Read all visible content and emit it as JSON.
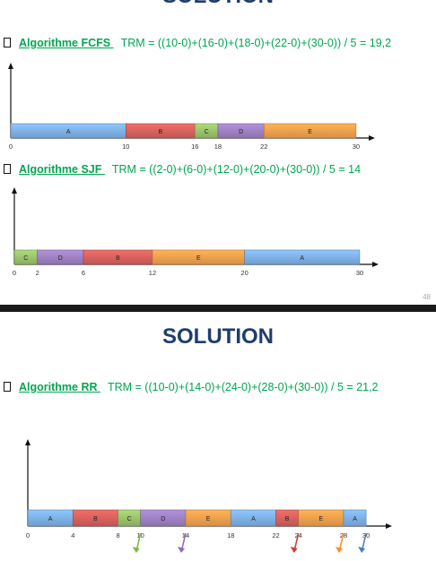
{
  "slide1": {
    "title": "SOLUTION",
    "fcfs": {
      "algo_label": "Algorithme FCFS ",
      "formula": "TRM = ((10-0)+(16-0)+(18-0)+(22-0)+(30-0)) / 5 = 19,2",
      "segments": [
        {
          "label": "A",
          "start": 0,
          "end": 10,
          "color": "#7fb2ea"
        },
        {
          "label": "B",
          "start": 10,
          "end": 16,
          "color": "#d9625e"
        },
        {
          "label": "C",
          "start": 16,
          "end": 18,
          "color": "#9cc46d"
        },
        {
          "label": "D",
          "start": 18,
          "end": 22,
          "color": "#9f82c4"
        },
        {
          "label": "E",
          "start": 22,
          "end": 30,
          "color": "#f7a14d"
        }
      ],
      "ticks": [
        "0",
        "10",
        "16",
        "18",
        "22",
        "30"
      ]
    },
    "sjf": {
      "algo_label": "Algorithme SJF ",
      "formula": "TRM = ((2-0)+(6-0)+(12-0)+(20-0)+(30-0)) / 5 = 14",
      "segments": [
        {
          "label": "C",
          "start": 0,
          "end": 2,
          "color": "#9cc46d"
        },
        {
          "label": "D",
          "start": 2,
          "end": 6,
          "color": "#9f82c4"
        },
        {
          "label": "B",
          "start": 6,
          "end": 12,
          "color": "#d9625e"
        },
        {
          "label": "E",
          "start": 12,
          "end": 20,
          "color": "#f7a14d"
        },
        {
          "label": "A",
          "start": 20,
          "end": 30,
          "color": "#7fb2ea"
        }
      ],
      "ticks": [
        "0",
        "2",
        "6",
        "12",
        "20",
        "30"
      ]
    },
    "page_number": "48"
  },
  "slide2": {
    "title": "SOLUTION",
    "rr": {
      "algo_label": "Algorithme RR ",
      "formula": "TRM = ((10-0)+(14-0)+(24-0)+(28-0)+(30-0)) / 5 = 21,2",
      "segments": [
        {
          "label": "A",
          "start": 0,
          "end": 4,
          "color": "#7fb2ea"
        },
        {
          "label": "B",
          "start": 4,
          "end": 8,
          "color": "#d9625e"
        },
        {
          "label": "C",
          "start": 8,
          "end": 10,
          "color": "#9cc46d"
        },
        {
          "label": "D",
          "start": 10,
          "end": 14,
          "color": "#9f82c4"
        },
        {
          "label": "E",
          "start": 14,
          "end": 18,
          "color": "#f7a14d"
        },
        {
          "label": "A",
          "start": 18,
          "end": 22,
          "color": "#7fb2ea"
        },
        {
          "label": "B",
          "start": 22,
          "end": 24,
          "color": "#d9625e"
        },
        {
          "label": "E",
          "start": 24,
          "end": 28,
          "color": "#f7a14d"
        },
        {
          "label": "A",
          "start": 28,
          "end": 30,
          "color": "#7fb2ea"
        }
      ],
      "ticks": [
        "0",
        "4",
        "8",
        "10",
        "14",
        "18",
        "22",
        "24",
        "28",
        "30"
      ],
      "completion_arrows": [
        {
          "time": 10,
          "color": "#7fba42"
        },
        {
          "time": 14,
          "color": "#8d6cc0"
        },
        {
          "time": 24,
          "color": "#c9413a"
        },
        {
          "time": 28,
          "color": "#f39329"
        },
        {
          "time": 30,
          "color": "#4a7fc1"
        }
      ]
    }
  }
}
